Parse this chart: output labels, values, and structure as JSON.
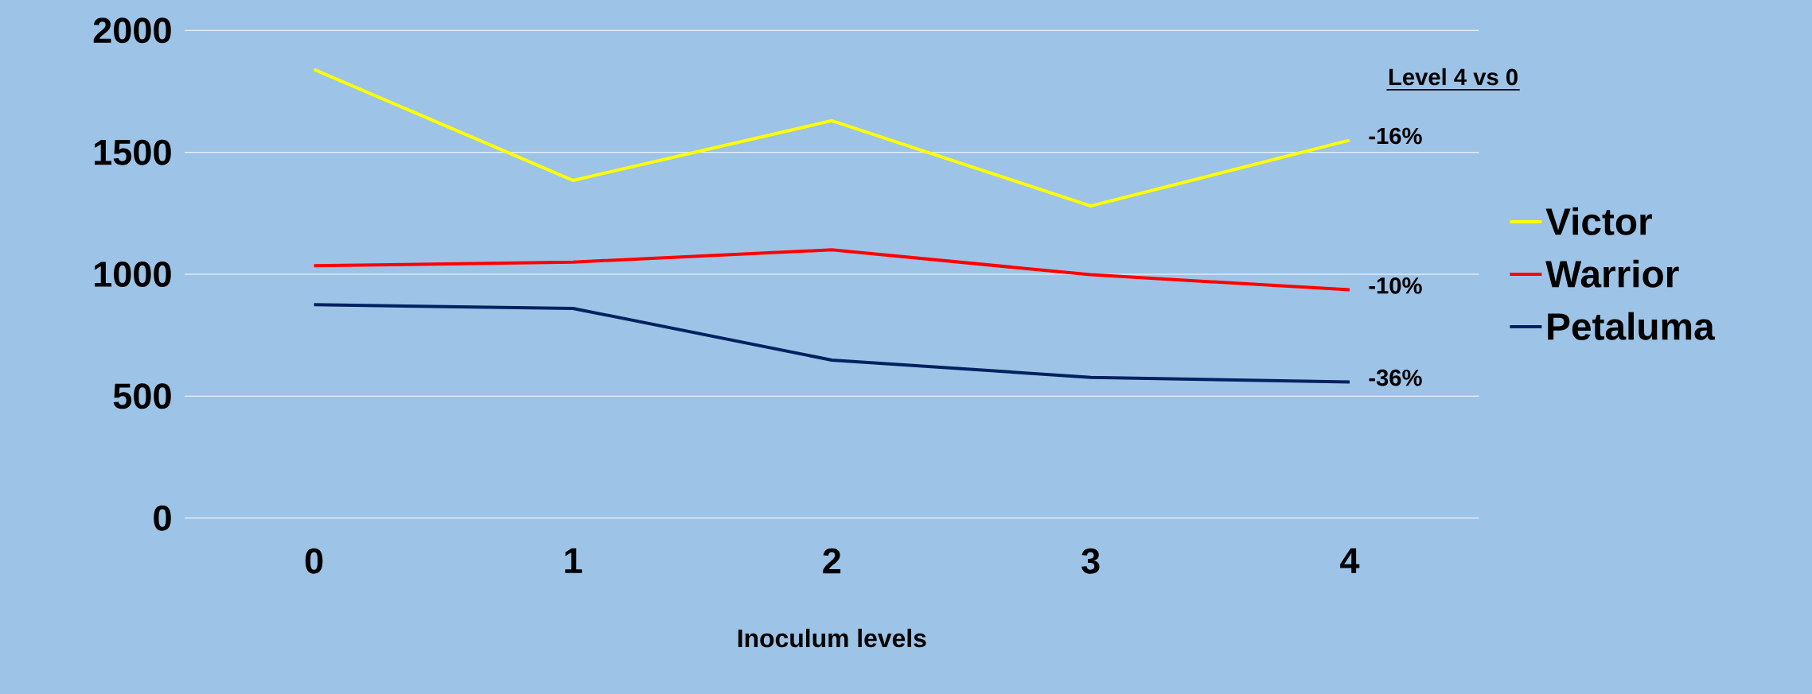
{
  "chart_data": {
    "type": "line",
    "xlabel": "Inoculum levels",
    "categories": [
      "0",
      "1",
      "2",
      "3",
      "4"
    ],
    "series": [
      {
        "name": "Victor",
        "color": "#ffff00",
        "values": [
          1840,
          1385,
          1630,
          1280,
          1550
        ]
      },
      {
        "name": "Warrior",
        "color": "#ff0000",
        "values": [
          1035,
          1050,
          1100,
          998,
          936
        ]
      },
      {
        "name": "Petaluma",
        "color": "#002060",
        "values": [
          875,
          860,
          648,
          577,
          558
        ]
      }
    ],
    "ylim": [
      0,
      2000
    ],
    "yticks": [
      0,
      500,
      1000,
      1500,
      2000
    ],
    "grid": "y",
    "legend": "right",
    "marker": "none",
    "line_style": "solid",
    "annotations": [
      "Level 4 vs 0",
      {
        "text": "-16%",
        "x": "4",
        "y": 1550
      },
      {
        "text": "-10%",
        "x": "4",
        "y": 936
      },
      {
        "text": "-36%",
        "x": "4",
        "y": 558
      }
    ]
  }
}
